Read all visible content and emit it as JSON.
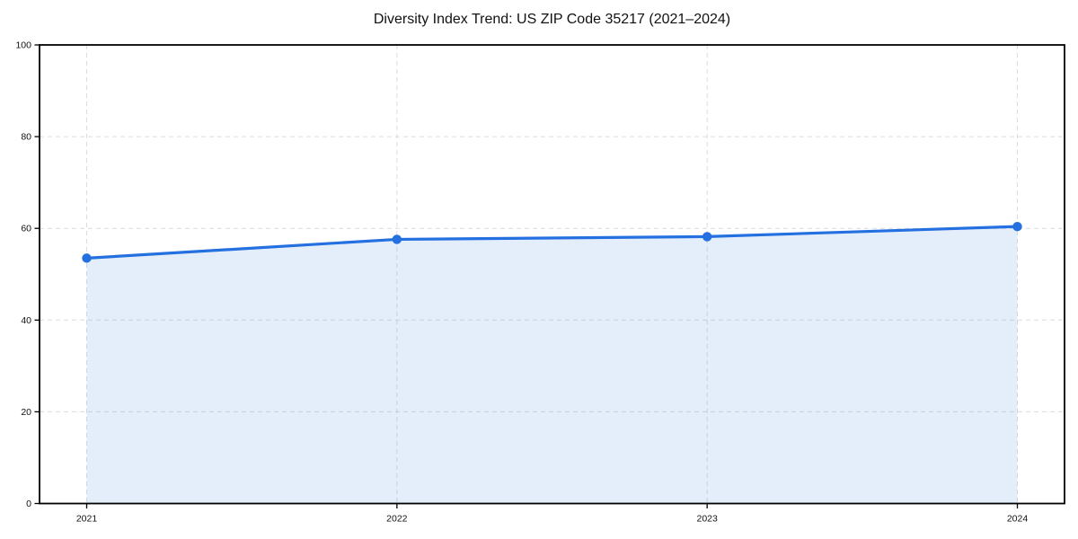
{
  "chart_data": {
    "type": "area",
    "title": "Diversity Index Trend: US ZIP Code 35217 (2021–2024)",
    "xlabel": "",
    "ylabel": "",
    "x": [
      "2021",
      "2022",
      "2023",
      "2024"
    ],
    "series": [
      {
        "name": "Diversity Index",
        "values": [
          53.5,
          57.6,
          58.2,
          60.4
        ]
      }
    ],
    "ylim": [
      0,
      100
    ],
    "yticks": [
      0,
      20,
      40,
      60,
      80,
      100
    ],
    "grid": true,
    "grid_style": "dashed",
    "legend": false,
    "marker": "circle",
    "colors": {
      "line": "#2470e0",
      "fill": "rgba(36,112,224,0.12)",
      "grid": "#dcdcdc",
      "axis": "#000000",
      "tick_label": "#111111"
    }
  }
}
